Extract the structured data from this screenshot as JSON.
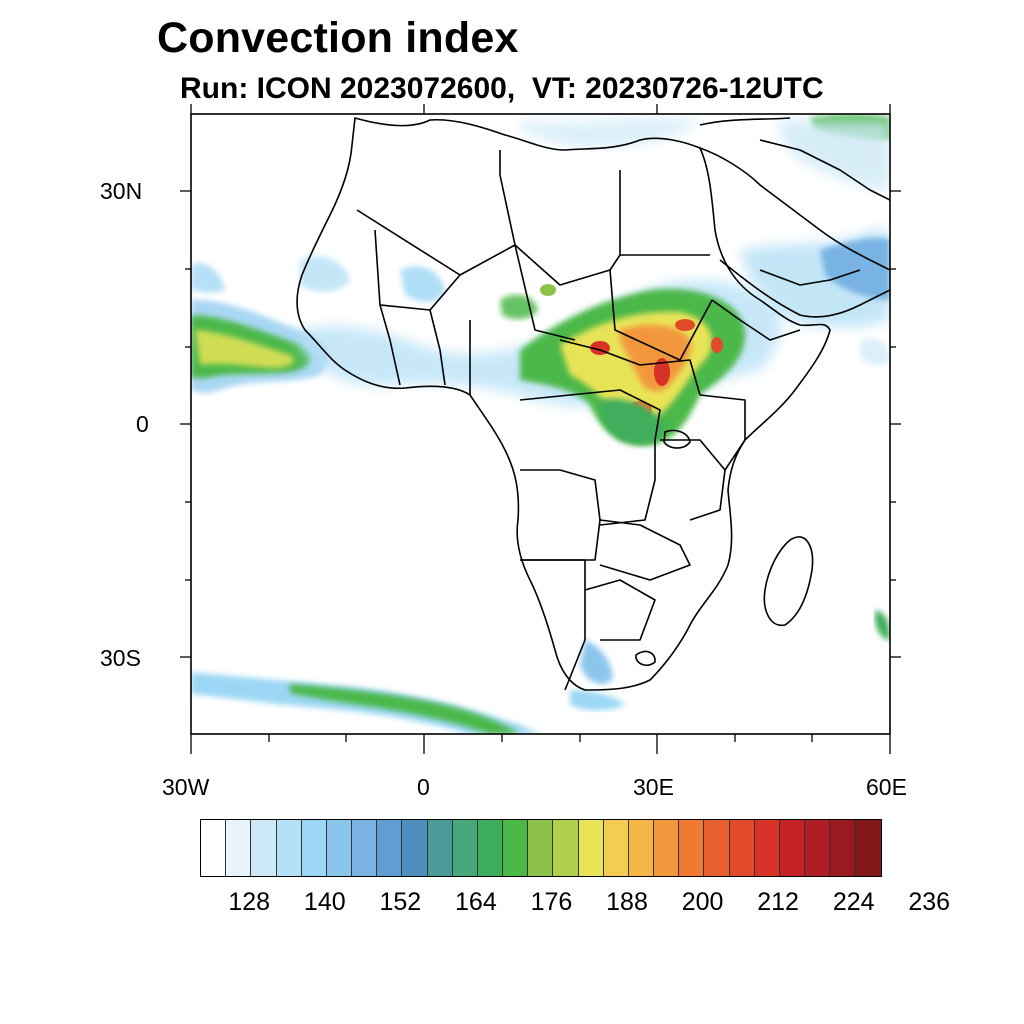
{
  "title": "Convection index",
  "subtitle": "Run: ICON 2023072600,  VT: 20230726-12UTC",
  "axes": {
    "lat_labels": [
      "30N",
      "0",
      "30S"
    ],
    "lon_labels": [
      "30W",
      "0",
      "30E",
      "60E"
    ],
    "lat_range": [
      -40,
      40
    ],
    "lon_range": [
      -30,
      60
    ]
  },
  "colorbar": {
    "labels": [
      "128",
      "140",
      "152",
      "164",
      "176",
      "188",
      "200",
      "212",
      "224",
      "236"
    ],
    "colors": [
      "#ffffff",
      "#e8f4fb",
      "#cde9f7",
      "#b5e0f6",
      "#9bd7f4",
      "#8ac6ec",
      "#78b3e3",
      "#5f9dd2",
      "#4f8fbf",
      "#4b9a9a",
      "#46a77b",
      "#3fae5c",
      "#4cb848",
      "#8cc24a",
      "#b2cf4c",
      "#e8e357",
      "#f3cc52",
      "#f5b547",
      "#f3973d",
      "#ee7a33",
      "#e8602d",
      "#e24a2a",
      "#d83227",
      "#c52226",
      "#b01d24",
      "#9a1a20",
      "#831819"
    ]
  },
  "map": {
    "land_outline_color": "#000000",
    "ocean_color": "#ffffff"
  }
}
